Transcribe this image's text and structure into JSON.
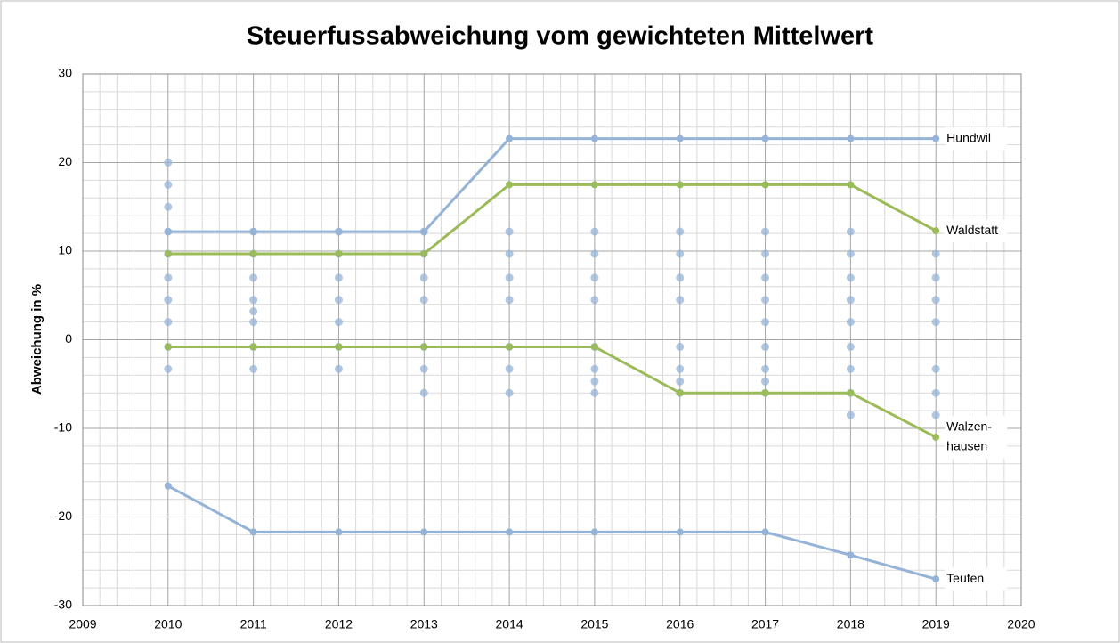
{
  "chart_data": {
    "type": "line",
    "title": "Steuerfussabweichung vom gewichteten Mittelwert",
    "y_label": "Abweichung in %",
    "x": [
      2010,
      2011,
      2012,
      2013,
      2014,
      2015,
      2016,
      2017,
      2018,
      2019
    ],
    "xlim": [
      2009,
      2020
    ],
    "xticks": [
      2009,
      2010,
      2011,
      2012,
      2013,
      2014,
      2015,
      2016,
      2017,
      2018,
      2019,
      2020
    ],
    "ylim": [
      -30,
      30
    ],
    "yticks": [
      -30,
      -20,
      -10,
      0,
      10,
      20,
      30
    ],
    "grid": true,
    "series": [
      {
        "label": [
          "Hundwil"
        ],
        "color": "#95b3d7",
        "values": [
          12.2,
          12.2,
          12.2,
          12.2,
          22.7,
          22.7,
          22.7,
          22.7,
          22.7,
          22.7
        ]
      },
      {
        "label": [
          "Waldstatt"
        ],
        "color": "#9bbb59",
        "values": [
          9.7,
          9.7,
          9.7,
          9.7,
          17.5,
          17.5,
          17.5,
          17.5,
          17.5,
          12.3
        ]
      },
      {
        "label": [
          "Walzen-",
          "hausen"
        ],
        "color": "#9bbb59",
        "values": [
          -0.8,
          -0.8,
          -0.8,
          -0.8,
          -0.8,
          -0.8,
          -6,
          -6,
          -6,
          -11
        ]
      },
      {
        "label": [
          "Teufen"
        ],
        "color": "#95b3d7",
        "values": [
          -16.5,
          -21.7,
          -21.7,
          -21.7,
          -21.7,
          -21.7,
          -21.7,
          -21.7,
          -24.3,
          -27
        ]
      }
    ],
    "dots": {
      "color": "#95b3d7",
      "x": [
        2010,
        2010,
        2010,
        2010,
        2010,
        2010,
        2010,
        2010,
        2010,
        2010,
        2011,
        2011,
        2011,
        2011,
        2011,
        2011,
        2011,
        2011,
        2012,
        2012,
        2012,
        2012,
        2012,
        2012,
        2012,
        2013,
        2013,
        2013,
        2013,
        2013,
        2013,
        2013,
        2014,
        2014,
        2014,
        2014,
        2014,
        2014,
        2014,
        2015,
        2015,
        2015,
        2015,
        2015,
        2015,
        2015,
        2015,
        2016,
        2016,
        2016,
        2016,
        2016,
        2016,
        2016,
        2016,
        2017,
        2017,
        2017,
        2017,
        2017,
        2017,
        2017,
        2017,
        2017,
        2018,
        2018,
        2018,
        2018,
        2018,
        2018,
        2018,
        2018,
        2018,
        2019,
        2019,
        2019,
        2019,
        2019,
        2019,
        2019
      ],
      "y": [
        20,
        17.5,
        15,
        12.2,
        9.7,
        7,
        4.5,
        2,
        -0.8,
        -3.3,
        12.2,
        9.7,
        7,
        4.5,
        3.2,
        2,
        -0.8,
        -3.3,
        12.2,
        9.7,
        7,
        4.5,
        2,
        -0.8,
        -3.3,
        12.2,
        9.7,
        7,
        4.5,
        -0.8,
        -3.3,
        -6,
        12.2,
        9.7,
        7,
        4.5,
        -0.8,
        -3.3,
        -6,
        12.2,
        9.7,
        7,
        4.5,
        -0.8,
        -3.3,
        -4.7,
        -6,
        12.2,
        9.7,
        7,
        4.5,
        -0.8,
        -3.3,
        -4.7,
        -6,
        12.2,
        9.7,
        7,
        4.5,
        2,
        -0.8,
        -3.3,
        -4.7,
        -6,
        12.2,
        9.7,
        7,
        4.5,
        2,
        -0.8,
        -3.3,
        -6,
        -8.5,
        9.7,
        7,
        4.5,
        2,
        -3.3,
        -6,
        -8.5
      ]
    }
  }
}
